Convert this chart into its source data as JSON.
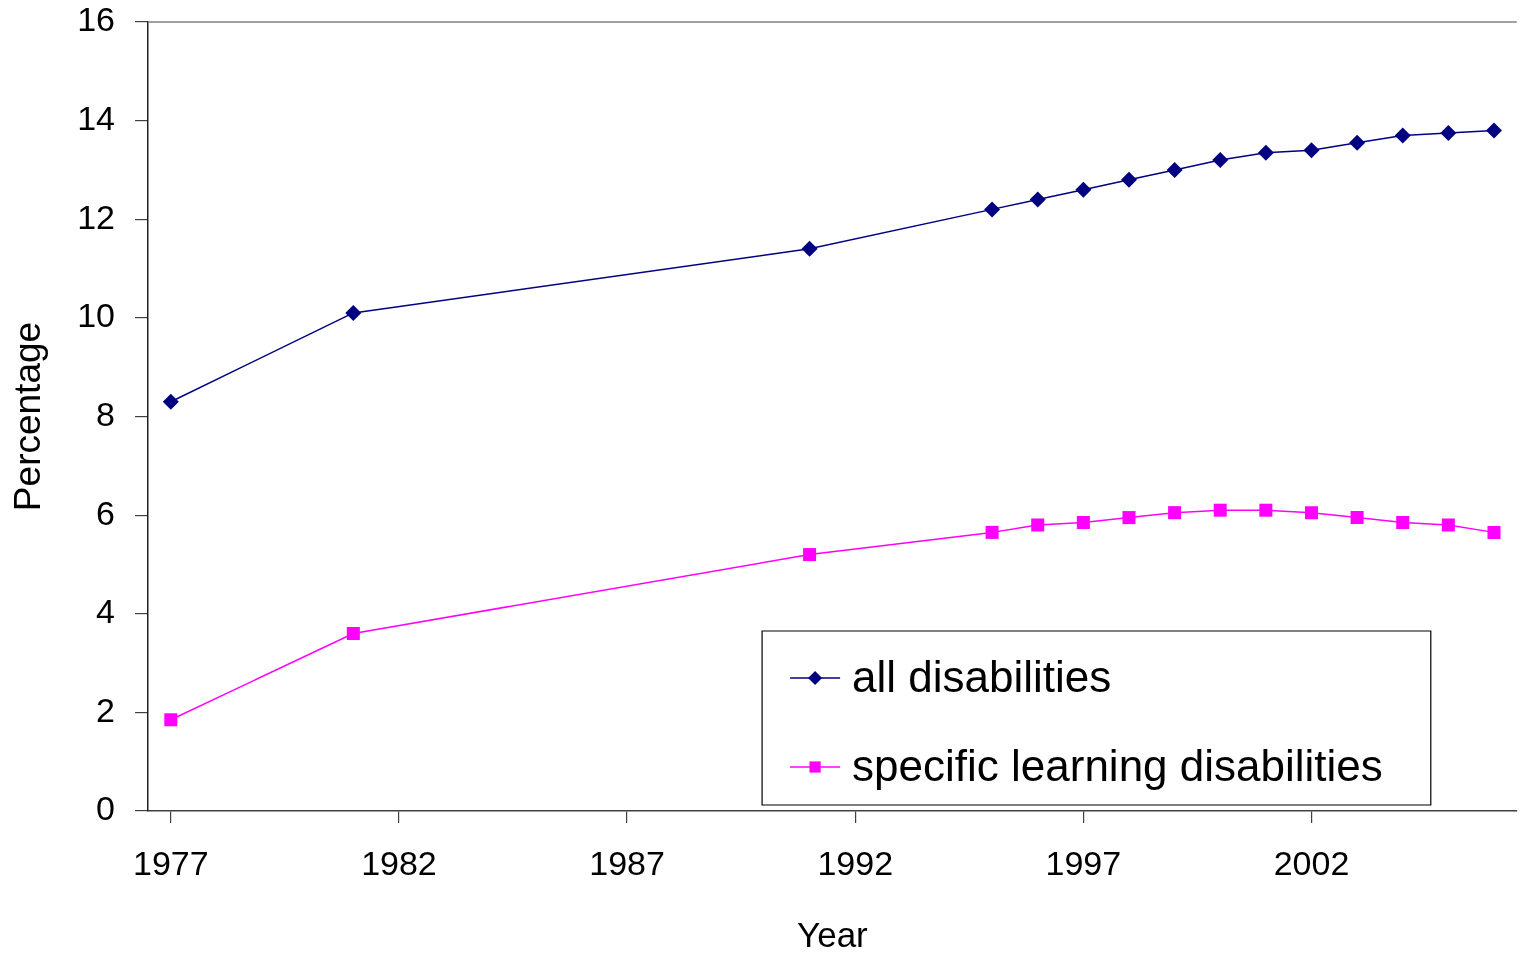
{
  "chart_data": {
    "type": "line",
    "xlabel": "Year",
    "ylabel": "Percentage",
    "legend": "bottom right",
    "x": [
      1977,
      1981,
      1991,
      1995,
      1996,
      1997,
      1998,
      1999,
      2000,
      2001,
      2002,
      2003,
      2004,
      2005,
      2006
    ],
    "series": [
      {
        "name": "all disabilities",
        "color": "#000080",
        "marker": "diamond",
        "values": [
          8.3,
          10.1,
          11.4,
          12.2,
          12.4,
          12.6,
          12.8,
          13.0,
          13.2,
          13.35,
          13.4,
          13.55,
          13.7,
          13.75,
          13.8
        ]
      },
      {
        "name": "specific learning disabilities",
        "color": "#ff00ff",
        "marker": "square",
        "values": [
          1.85,
          3.6,
          5.2,
          5.65,
          5.8,
          5.85,
          5.95,
          6.05,
          6.1,
          6.1,
          6.05,
          5.95,
          5.85,
          5.8,
          5.65
        ]
      }
    ],
    "xlim": [
      1976.5,
      2006.5
    ],
    "xticks": [
      1977,
      1982,
      1987,
      1992,
      1997,
      2002
    ],
    "ylim": [
      0,
      16
    ],
    "yticks": [
      0,
      2,
      4,
      6,
      8,
      10,
      12,
      14,
      16
    ]
  }
}
